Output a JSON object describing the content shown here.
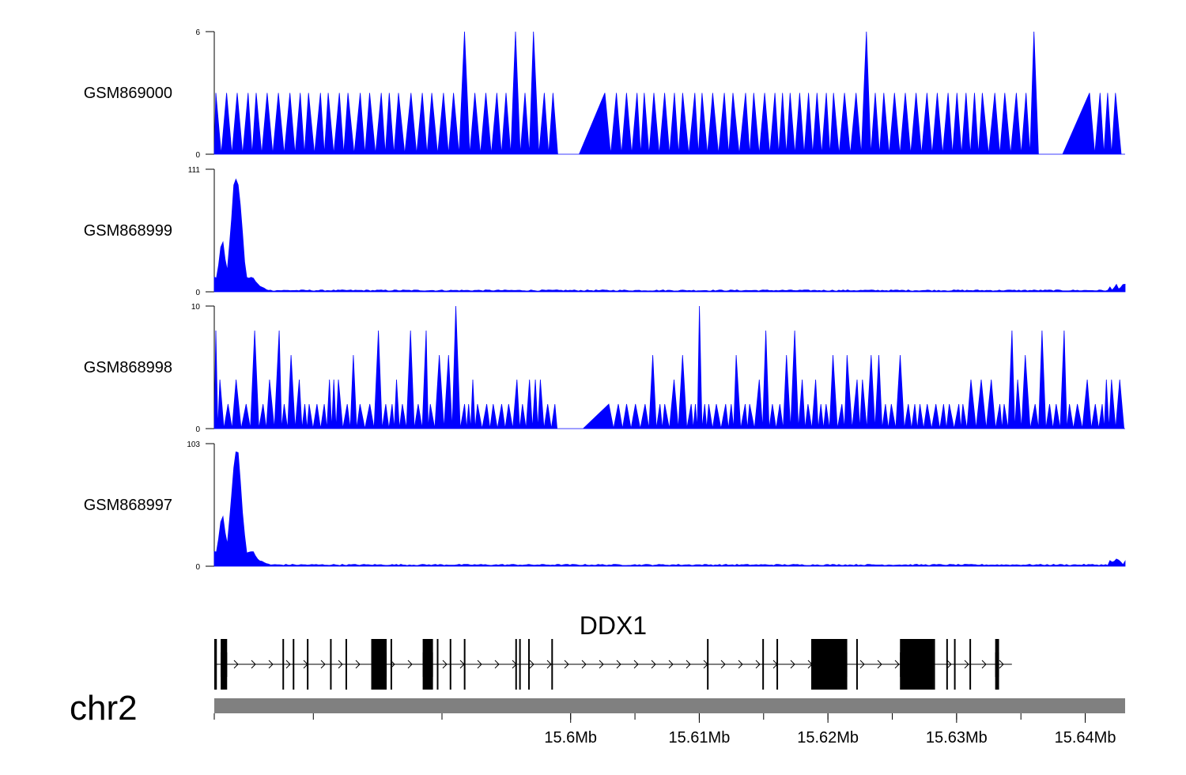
{
  "chart_data": {
    "type": "area",
    "colors": {
      "signal": "#0000ff",
      "gene": "#000000",
      "ideogram": "#808080"
    },
    "tracks": [
      {
        "name": "GSM869000",
        "ymin": 0,
        "ymax": 6,
        "ymin_label": "0",
        "ymax_label": "6",
        "profile": "sparse-low"
      },
      {
        "name": "GSM868999",
        "ymin": 0,
        "ymax": 111,
        "ymin_label": "0",
        "ymax_label": "111",
        "profile": "peak-left"
      },
      {
        "name": "GSM868998",
        "ymin": 0,
        "ymax": 10,
        "ymin_label": "0",
        "ymax_label": "10",
        "profile": "sparse-dense"
      },
      {
        "name": "GSM868997",
        "ymin": 0,
        "ymax": 103,
        "ymin_label": "0",
        "ymax_label": "103",
        "profile": "peak-left"
      }
    ],
    "gene": {
      "name": "DDX1",
      "strand": "+",
      "start_mb": 15.5723,
      "end_mb": 15.6343,
      "exons_mb": [
        [
          15.5723,
          15.5725
        ],
        [
          15.5728,
          15.5733
        ],
        [
          15.5776,
          15.5777
        ],
        [
          15.5784,
          15.5785
        ],
        [
          15.5795,
          15.5796
        ],
        [
          15.5813,
          15.5814
        ],
        [
          15.5825,
          15.5826
        ],
        [
          15.5845,
          15.5857
        ],
        [
          15.586,
          15.5861
        ],
        [
          15.5885,
          15.5893
        ],
        [
          15.5896,
          15.5897
        ],
        [
          15.5906,
          15.5907
        ],
        [
          15.5917,
          15.5918
        ],
        [
          15.5957,
          15.5958
        ],
        [
          15.596,
          15.5961
        ],
        [
          15.5967,
          15.5968
        ],
        [
          15.5985,
          15.5986
        ],
        [
          15.6106,
          15.6107
        ],
        [
          15.6149,
          15.615
        ],
        [
          15.616,
          15.6161
        ],
        [
          15.6187,
          15.6215
        ],
        [
          15.6222,
          15.6223
        ],
        [
          15.6256,
          15.6282
        ],
        [
          15.6266,
          15.6267
        ],
        [
          15.6269,
          15.627
        ],
        [
          15.6282,
          15.6283
        ],
        [
          15.6292,
          15.6293
        ],
        [
          15.6298,
          15.6299
        ],
        [
          15.631,
          15.6311
        ],
        [
          15.633,
          15.6333
        ]
      ],
      "thick_exons_mb": [
        [
          15.5728,
          15.5733
        ],
        [
          15.5845,
          15.5857
        ],
        [
          15.5885,
          15.5893
        ],
        [
          15.6187,
          15.6215
        ],
        [
          15.6256,
          15.6282
        ],
        [
          15.633,
          15.6333
        ]
      ]
    },
    "axis": {
      "chromosome": "chr2",
      "range_mb": [
        15.5723,
        15.6431
      ],
      "major_ticks_mb": [
        15.6,
        15.61,
        15.62,
        15.63,
        15.64
      ],
      "major_labels": [
        "15.6Mb",
        "15.61Mb",
        "15.62Mb",
        "15.63Mb",
        "15.64Mb"
      ],
      "minor_ticks_mb": [
        15.5723,
        15.58,
        15.59,
        15.6,
        15.605,
        15.61,
        15.615,
        15.62,
        15.625,
        15.63,
        15.635,
        15.64
      ]
    },
    "legend": "none",
    "grid": false
  }
}
